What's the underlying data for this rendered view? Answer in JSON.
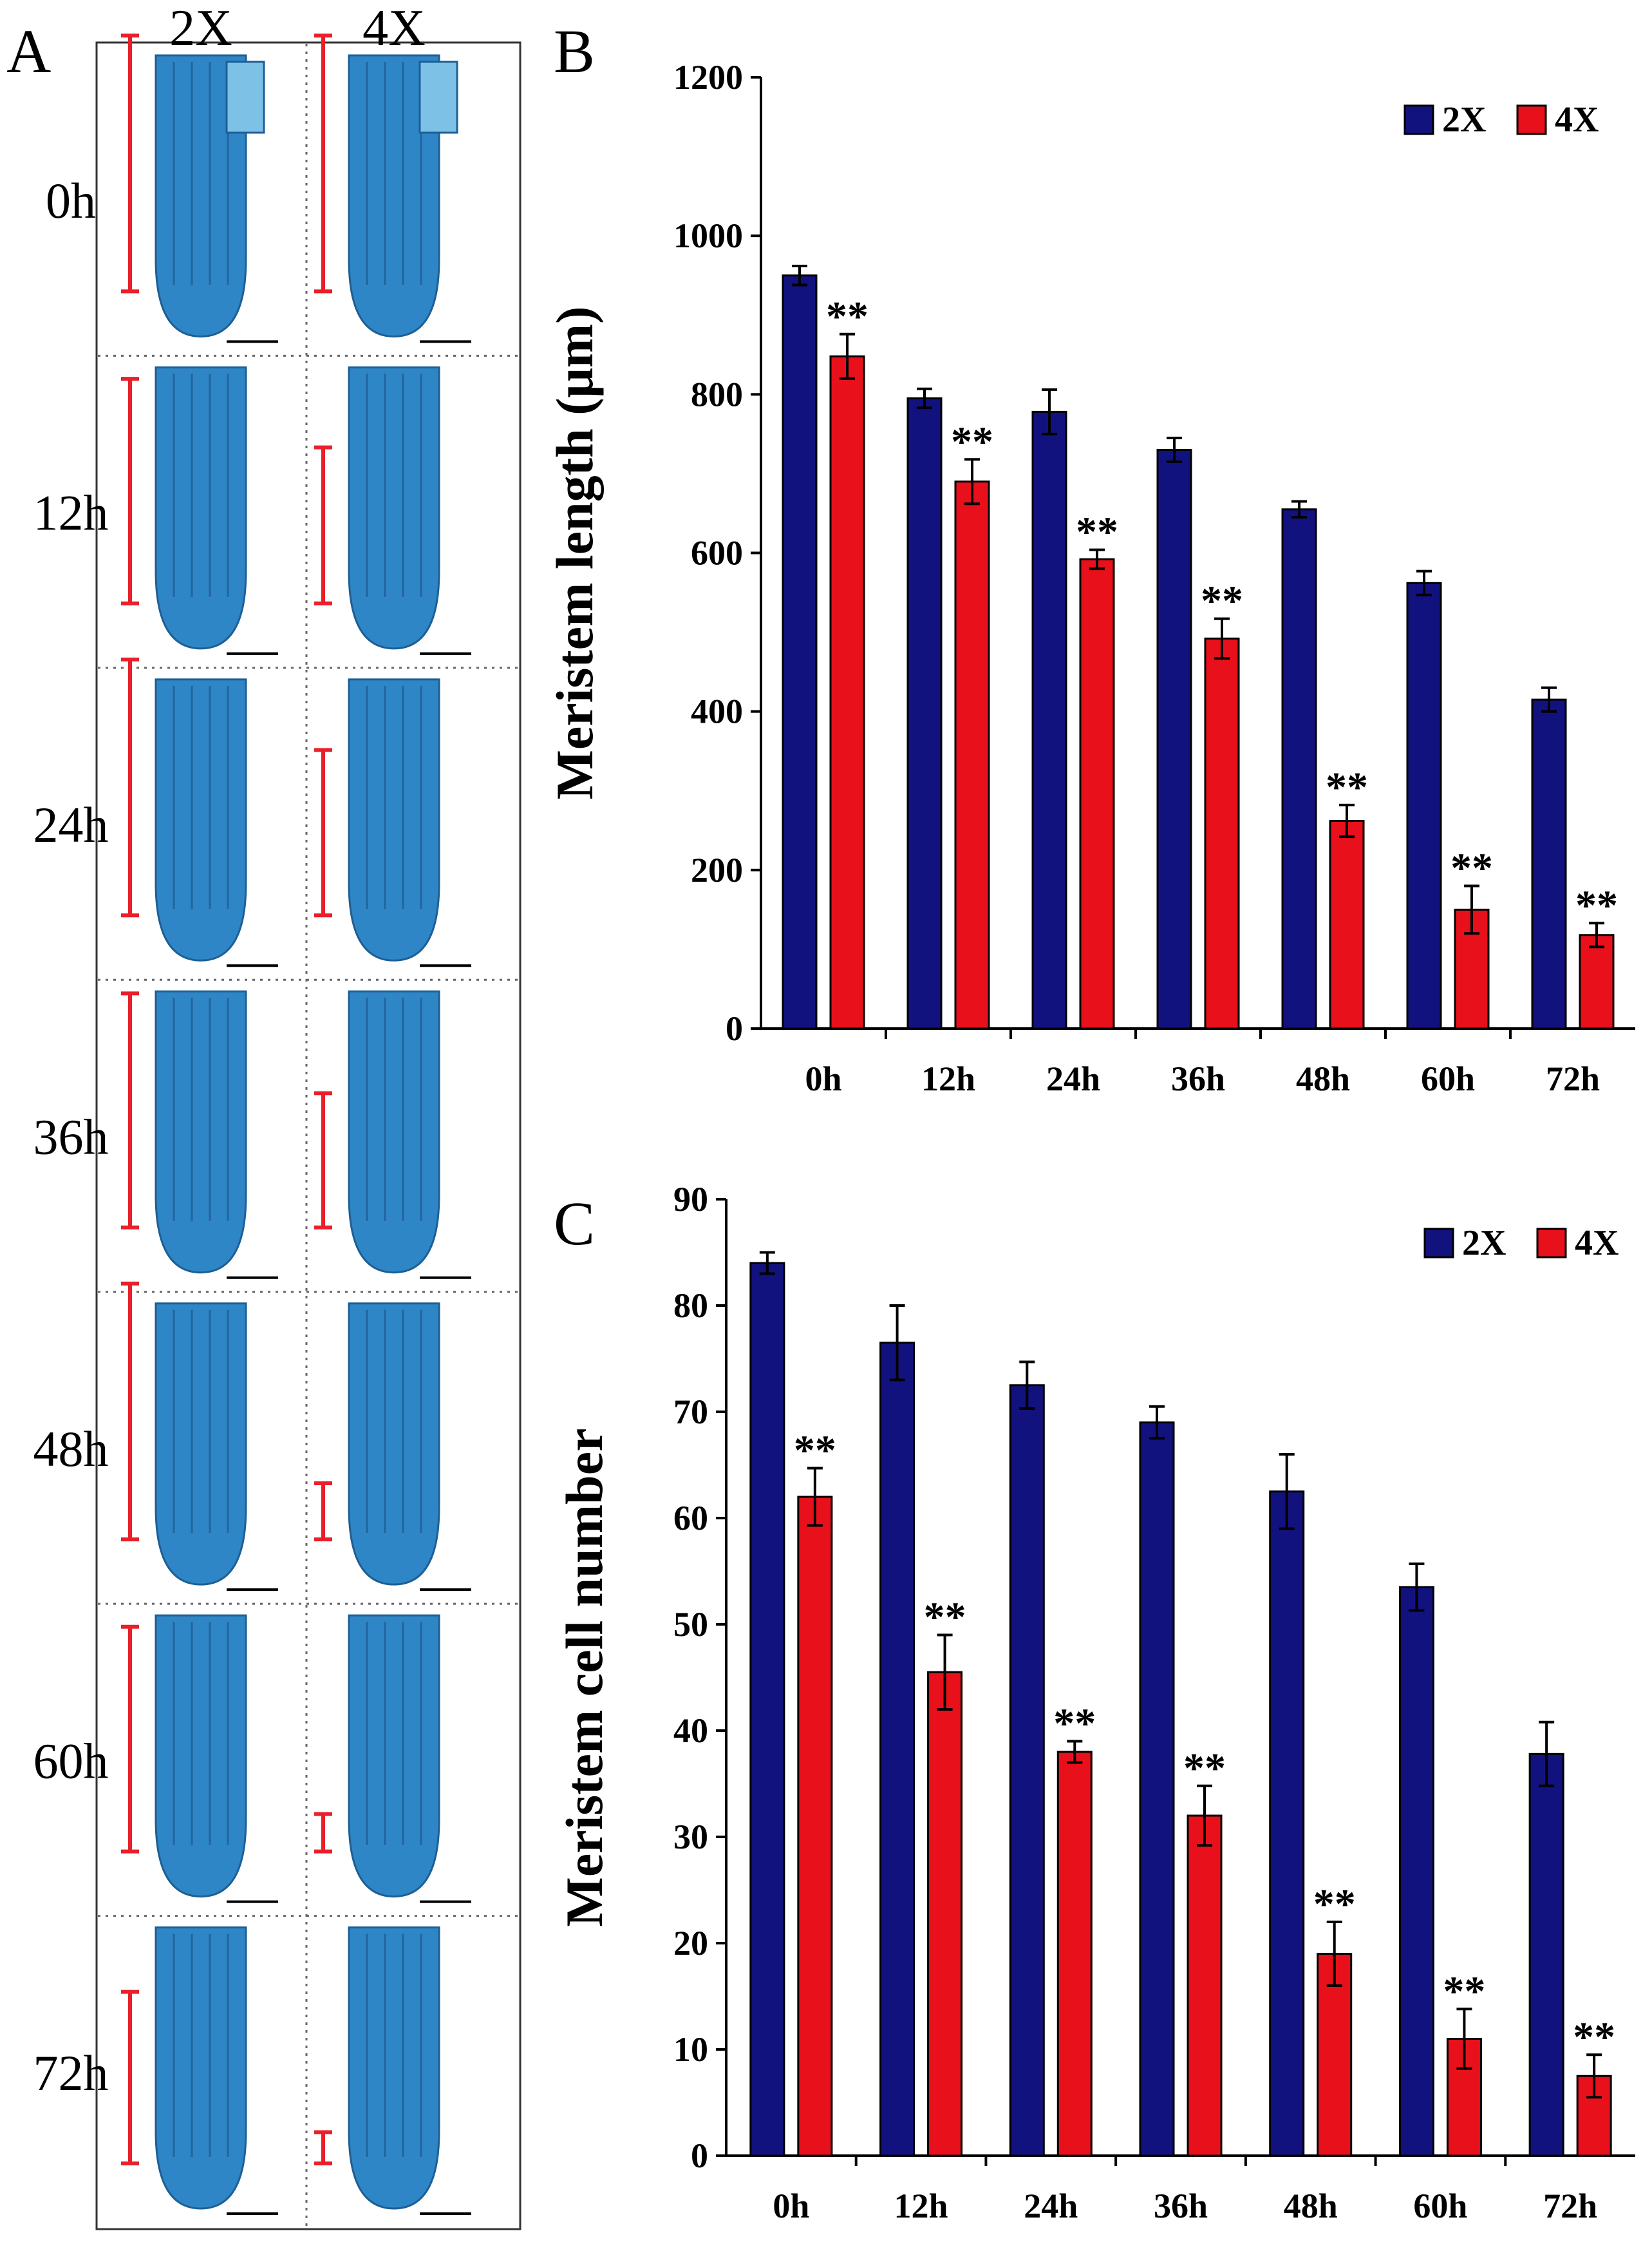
{
  "panel_a": {
    "letter": "A",
    "columns": [
      "2X",
      "4X"
    ],
    "rows": [
      "0h",
      "12h",
      "24h",
      "36h",
      "48h",
      "60h",
      "72h"
    ],
    "tissue_color": "#2f86c6",
    "bar_color": "#e8202a",
    "meristem_extent_2x": [
      0.82,
      0.72,
      0.82,
      0.75,
      0.82,
      0.72,
      0.55
    ],
    "meristem_extent_4x": [
      0.82,
      0.5,
      0.53,
      0.43,
      0.18,
      0.12,
      0.1
    ]
  },
  "chart_data": [
    {
      "panel": "B",
      "type": "bar",
      "categories": [
        "0h",
        "12h",
        "24h",
        "36h",
        "48h",
        "60h",
        "72h"
      ],
      "series": [
        {
          "name": "2X",
          "color": "#12127e",
          "values": [
            950,
            795,
            778,
            730,
            655,
            562,
            415
          ],
          "errors": [
            12,
            12,
            28,
            15,
            10,
            15,
            15
          ],
          "significance": [
            "",
            "",
            "",
            "",
            "",
            "",
            ""
          ]
        },
        {
          "name": "4X",
          "color": "#e8101a",
          "values": [
            848,
            690,
            592,
            492,
            262,
            150,
            118
          ],
          "errors": [
            28,
            28,
            12,
            25,
            20,
            30,
            15
          ],
          "significance": [
            "**",
            "**",
            "**",
            "**",
            "**",
            "**",
            "**"
          ]
        }
      ],
      "title": "",
      "xlabel": "",
      "ylabel": "Meristem length (μm)",
      "ylim": [
        0,
        1200
      ],
      "yticks": [
        0,
        200,
        400,
        600,
        800,
        1000,
        1200
      ],
      "legend": "top-right",
      "grid": false
    },
    {
      "panel": "C",
      "type": "bar",
      "categories": [
        "0h",
        "12h",
        "24h",
        "36h",
        "48h",
        "60h",
        "72h"
      ],
      "series": [
        {
          "name": "2X",
          "color": "#12127e",
          "values": [
            84,
            76.5,
            72.5,
            69,
            62.5,
            53.5,
            37.8
          ],
          "errors": [
            1.0,
            3.5,
            2.2,
            1.5,
            3.5,
            2.2,
            3.0
          ],
          "significance": [
            "",
            "",
            "",
            "",
            "",
            "",
            ""
          ]
        },
        {
          "name": "4X",
          "color": "#e8101a",
          "values": [
            62,
            45.5,
            38,
            32,
            19,
            11,
            7.5
          ],
          "errors": [
            2.7,
            3.5,
            1.0,
            2.8,
            3.0,
            2.8,
            2.0
          ],
          "significance": [
            "**",
            "**",
            "**",
            "**",
            "**",
            "**",
            "**"
          ]
        }
      ],
      "title": "",
      "xlabel": "",
      "ylabel": "Meristem cell number",
      "ylim": [
        0,
        90
      ],
      "yticks": [
        0,
        10,
        20,
        30,
        40,
        50,
        60,
        70,
        80,
        90
      ],
      "legend": "top-right",
      "grid": false
    }
  ]
}
